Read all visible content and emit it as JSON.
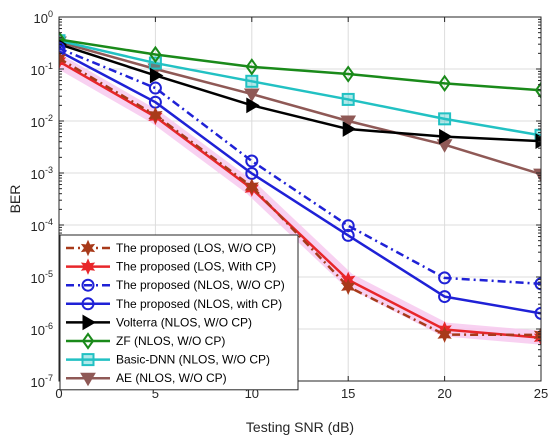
{
  "chart_data": {
    "type": "line",
    "xlabel": "Testing SNR (dB)",
    "ylabel": "BER",
    "xlim": [
      0,
      25
    ],
    "ylim_log10": [
      -7,
      0
    ],
    "yscale": "log",
    "grid": true,
    "legend_position": "bottom-left",
    "x_ticks": [
      "0",
      "5",
      "10",
      "15",
      "20",
      "25"
    ],
    "y_ticks": [
      {
        "base": "10",
        "exp": "0"
      },
      {
        "base": "10",
        "exp": "-1"
      },
      {
        "base": "10",
        "exp": "-2"
      },
      {
        "base": "10",
        "exp": "-3"
      },
      {
        "base": "10",
        "exp": "-4"
      },
      {
        "base": "10",
        "exp": "-5"
      },
      {
        "base": "10",
        "exp": "-6"
      },
      {
        "base": "10",
        "exp": "-7"
      }
    ],
    "x": [
      0,
      5,
      10,
      15,
      20,
      25
    ],
    "series": [
      {
        "name": "The proposed (LOS, W/O CP)",
        "color": "#a83a1a",
        "dash": "8,4,2,4",
        "marker": "star",
        "values": [
          0.16,
          0.013,
          0.00055,
          6.5e-06,
          7.8e-07,
          7.7e-07
        ]
      },
      {
        "name": "The proposed (LOS, With CP)",
        "color": "#e8262a",
        "dash": "",
        "marker": "star",
        "values": [
          0.14,
          0.012,
          0.0005,
          8.8e-06,
          9.8e-07,
          6.8e-07
        ]
      },
      {
        "name": "The proposed (NLOS, W/O CP)",
        "color": "#1f21d6",
        "dash": "8,4,2,4",
        "marker": "circle",
        "values": [
          0.25,
          0.043,
          0.0017,
          9.7e-05,
          9.6e-06,
          7.4e-06
        ]
      },
      {
        "name": "The proposed (NLOS, with CP)",
        "color": "#1f21d6",
        "dash": "",
        "marker": "circle",
        "values": [
          0.22,
          0.023,
          0.00098,
          6.3e-05,
          4.2e-06,
          2e-06
        ]
      },
      {
        "name": "Volterra (NLOS, W/O CP)",
        "color": "#000000",
        "dash": "",
        "marker": "triangle-right",
        "values": [
          0.3,
          0.075,
          0.02,
          0.007,
          0.005,
          0.0041
        ]
      },
      {
        "name": "ZF (NLOS, W/O CP)",
        "color": "#1a8a1a",
        "dash": "",
        "marker": "diamond",
        "values": [
          0.37,
          0.19,
          0.11,
          0.08,
          0.053,
          0.039
        ]
      },
      {
        "name": "Basic-DNN (NLOS, W/O CP)",
        "color": "#22c1c3",
        "dash": "",
        "marker": "square",
        "values": [
          0.35,
          0.13,
          0.058,
          0.026,
          0.011,
          0.0053
        ]
      },
      {
        "name": "AE (NLOS, W/O CP)",
        "color": "#8f5956",
        "dash": "",
        "marker": "triangle-down",
        "values": [
          0.33,
          0.1,
          0.033,
          0.01,
          0.0035,
          0.00095
        ]
      }
    ]
  }
}
